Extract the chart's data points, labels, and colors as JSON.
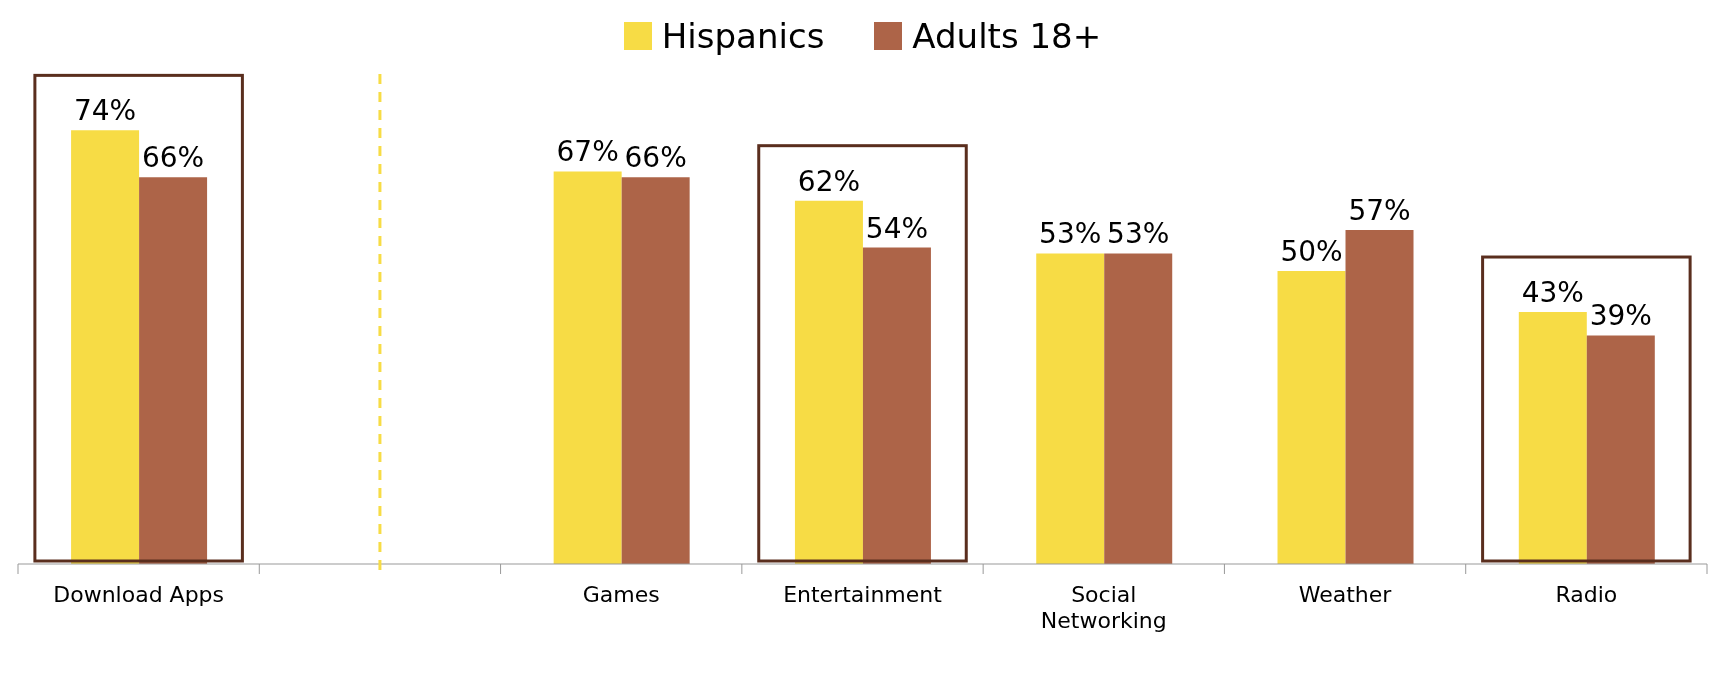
{
  "chart_data": {
    "type": "bar",
    "categories": [
      "Download Apps",
      null,
      "Games",
      "Entertainment",
      "Social Networking",
      "Weather",
      "Radio"
    ],
    "series": [
      {
        "name": "Hispanics",
        "color": "#f7dc45",
        "values": [
          74,
          null,
          67,
          62,
          53,
          50,
          43
        ],
        "value_labels": [
          "74%",
          null,
          "67%",
          "62%",
          "53%",
          "50%",
          "43%"
        ]
      },
      {
        "name": "Adults 18+",
        "color": "#ad6448",
        "values": [
          66,
          null,
          66,
          54,
          53,
          57,
          39
        ],
        "value_labels": [
          "66%",
          null,
          "66%",
          "54%",
          "53%",
          "57%",
          "39%"
        ]
      }
    ],
    "legend": "top"
  }
}
